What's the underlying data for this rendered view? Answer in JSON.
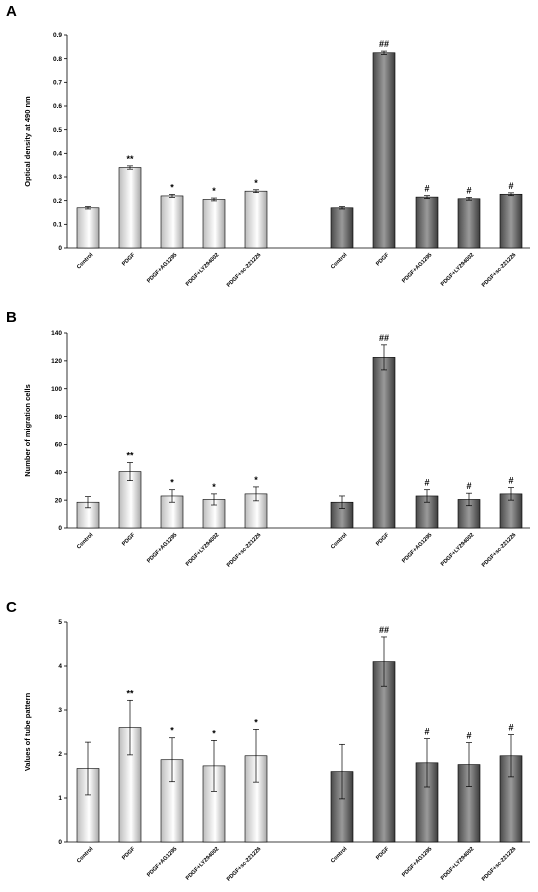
{
  "chart_data": [
    {
      "panel": "A",
      "type": "bar",
      "ylabel": "Optical density at 490 nm",
      "ylim": [
        0,
        0.9
      ],
      "yticks": [
        "0",
        "0.1",
        "0.2",
        "0.3",
        "0.4",
        "0.5",
        "0.6",
        "0.7",
        "0.8",
        "0.9"
      ],
      "groups": [
        {
          "style": "light",
          "categories": [
            "Control",
            "PDGF",
            "PDGF+AG1295",
            "PDGF+LY294002",
            "PDGF+sc-221226"
          ],
          "values": [
            0.17,
            0.34,
            0.22,
            0.205,
            0.24
          ],
          "errors": [
            0.005,
            0.007,
            0.006,
            0.006,
            0.006
          ],
          "labels": [
            "",
            "**",
            "*",
            "*",
            "*"
          ]
        },
        {
          "style": "dark",
          "categories": [
            "Control",
            "PDGF",
            "PDGF+AG1295",
            "PDGF+LY294002",
            "PDGF+sc-221226"
          ],
          "values": [
            0.17,
            0.825,
            0.215,
            0.208,
            0.227
          ],
          "errors": [
            0.005,
            0.007,
            0.006,
            0.006,
            0.006
          ],
          "labels": [
            "",
            "##",
            "#",
            "#",
            "#"
          ]
        }
      ]
    },
    {
      "panel": "B",
      "type": "bar",
      "ylabel": "Number of migration cells",
      "ylim": [
        0,
        140
      ],
      "yticks": [
        "0",
        "20",
        "40",
        "60",
        "80",
        "100",
        "120",
        "140"
      ],
      "groups": [
        {
          "style": "light",
          "categories": [
            "Control",
            "PDGF",
            "PDGF+AG1295",
            "PDGF+LY294002",
            "PDGF+sc-221226"
          ],
          "values": [
            18.5,
            40.5,
            23,
            20.5,
            24.5
          ],
          "errors": [
            4,
            6.5,
            4.5,
            4,
            5
          ],
          "labels": [
            "",
            "**",
            "*",
            "*",
            "*"
          ]
        },
        {
          "style": "dark",
          "categories": [
            "Control",
            "PDGF",
            "PDGF+AG1295",
            "PDGF+LY294002",
            "PDGF+sc-221226"
          ],
          "values": [
            18.5,
            122.5,
            23,
            20.5,
            24.5
          ],
          "errors": [
            4.5,
            9,
            4.5,
            4.5,
            4.5
          ],
          "labels": [
            "",
            "##",
            "#",
            "#",
            "#"
          ]
        }
      ]
    },
    {
      "panel": "C",
      "type": "bar",
      "ylabel": "Values of tube pattern",
      "ylim": [
        0,
        5
      ],
      "yticks": [
        "0",
        "1",
        "2",
        "3",
        "4",
        "5"
      ],
      "groups": [
        {
          "style": "light",
          "categories": [
            "Control",
            "PDGF",
            "PDGF+AG1295",
            "PDGF+LY294002",
            "PDGF+sc-221226"
          ],
          "values": [
            1.67,
            2.6,
            1.87,
            1.73,
            1.96
          ],
          "errors": [
            0.6,
            0.62,
            0.5,
            0.58,
            0.6
          ],
          "labels": [
            "",
            "**",
            "*",
            "*",
            "*"
          ]
        },
        {
          "style": "dark",
          "categories": [
            "Control",
            "PDGF",
            "PDGF+AG1295",
            "PDGF+LY294002",
            "PDGF+sc-221226"
          ],
          "values": [
            1.6,
            4.1,
            1.8,
            1.76,
            1.96
          ],
          "errors": [
            0.62,
            0.56,
            0.55,
            0.5,
            0.48
          ],
          "labels": [
            "",
            "##",
            "#",
            "#",
            "#"
          ]
        }
      ]
    }
  ]
}
